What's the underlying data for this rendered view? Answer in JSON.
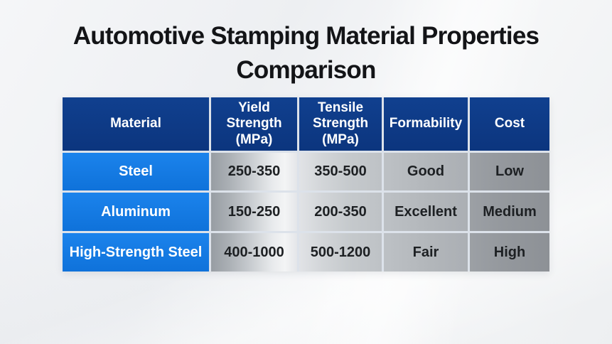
{
  "title": {
    "full": "Automotive Stamping Material Properties Comparison",
    "lines": [
      "Automotive Stamping Material Properties",
      "Comparison"
    ]
  },
  "chart_data": {
    "type": "table",
    "title": "Automotive Stamping Material Properties Comparison",
    "columns": [
      "Material",
      "Yield Strength (MPa)",
      "Tensile Strength (MPa)",
      "Formability",
      "Cost"
    ],
    "rows": [
      [
        "Steel",
        "250-350",
        "350-500",
        "Good",
        "Low"
      ],
      [
        "Aluminum",
        "150-250",
        "200-350",
        "Excellent",
        "Medium"
      ],
      [
        "High-Strength Steel",
        "400-1000",
        "500-1200",
        "Fair",
        "High"
      ]
    ]
  },
  "colors": {
    "header_background": "#0d3a88",
    "material_column_background": "#1478e2",
    "header_text": "#ffffff",
    "body_text": "#1d2023",
    "title_text": "#131417",
    "metallic_highlight": "#f3f4f5",
    "cost_column_gray": "#8d9196",
    "background": "#f0f1f4"
  }
}
